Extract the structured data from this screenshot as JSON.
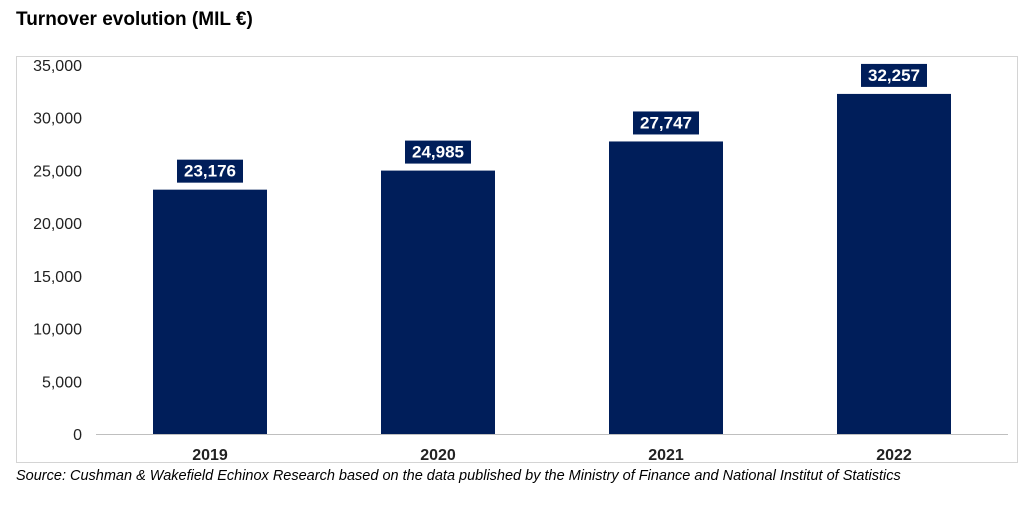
{
  "chart_data": {
    "type": "bar",
    "title": "Turnover evolution (MIL €)",
    "categories": [
      "2019",
      "2020",
      "2021",
      "2022"
    ],
    "values": [
      23176,
      24985,
      27747,
      32257
    ],
    "data_labels": [
      "23,176",
      "24,985",
      "27,747",
      "32,257"
    ],
    "ylim": [
      0,
      35000
    ],
    "yticks": [
      0,
      5000,
      10000,
      15000,
      20000,
      25000,
      30000,
      35000
    ],
    "ytick_labels": [
      "0",
      "5,000",
      "10,000",
      "15,000",
      "20,000",
      "25,000",
      "30,000",
      "35,000"
    ],
    "xlabel": "",
    "ylabel": "",
    "grid": false,
    "legend": "none",
    "bar_color": "#001e5a",
    "label_box_color": "#001e5a",
    "label_text_color": "#ffffff"
  },
  "source": "Source: Cushman & Wakefield Echinox Research based on the data published by the Ministry of Finance and National Institut of Statistics"
}
